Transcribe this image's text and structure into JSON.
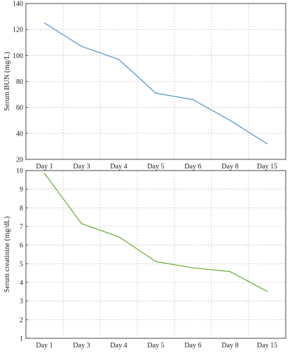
{
  "chart_data": [
    {
      "type": "line",
      "categories": [
        "Day 1",
        "Day 3",
        "Day 4",
        "Day 5",
        "Day 6",
        "Day 8",
        "Day 15"
      ],
      "series": [
        {
          "values": [
            125,
            107,
            97,
            71,
            66,
            50,
            32
          ],
          "color": "#4a8fd0"
        }
      ],
      "xlabel": "",
      "ylabel": "Serum BUN (mg/L)",
      "ylim": [
        20,
        140
      ],
      "yticks": [
        20,
        40,
        60,
        80,
        100,
        120,
        140
      ],
      "grid": true
    },
    {
      "type": "line",
      "categories": [
        "Day 1",
        "Day 3",
        "Day 4",
        "Day 5",
        "Day 6",
        "Day 8",
        "Day 15"
      ],
      "series": [
        {
          "values": [
            9.85,
            7.15,
            6.45,
            5.12,
            4.78,
            4.58,
            3.52
          ],
          "color": "#6aaa38"
        }
      ],
      "xlabel": "",
      "ylabel": "Serum creatinine (mg/dL)",
      "ylim": [
        1,
        10
      ],
      "yticks": [
        1,
        2,
        3,
        4,
        5,
        6,
        7,
        8,
        9,
        10
      ],
      "grid": true
    }
  ]
}
